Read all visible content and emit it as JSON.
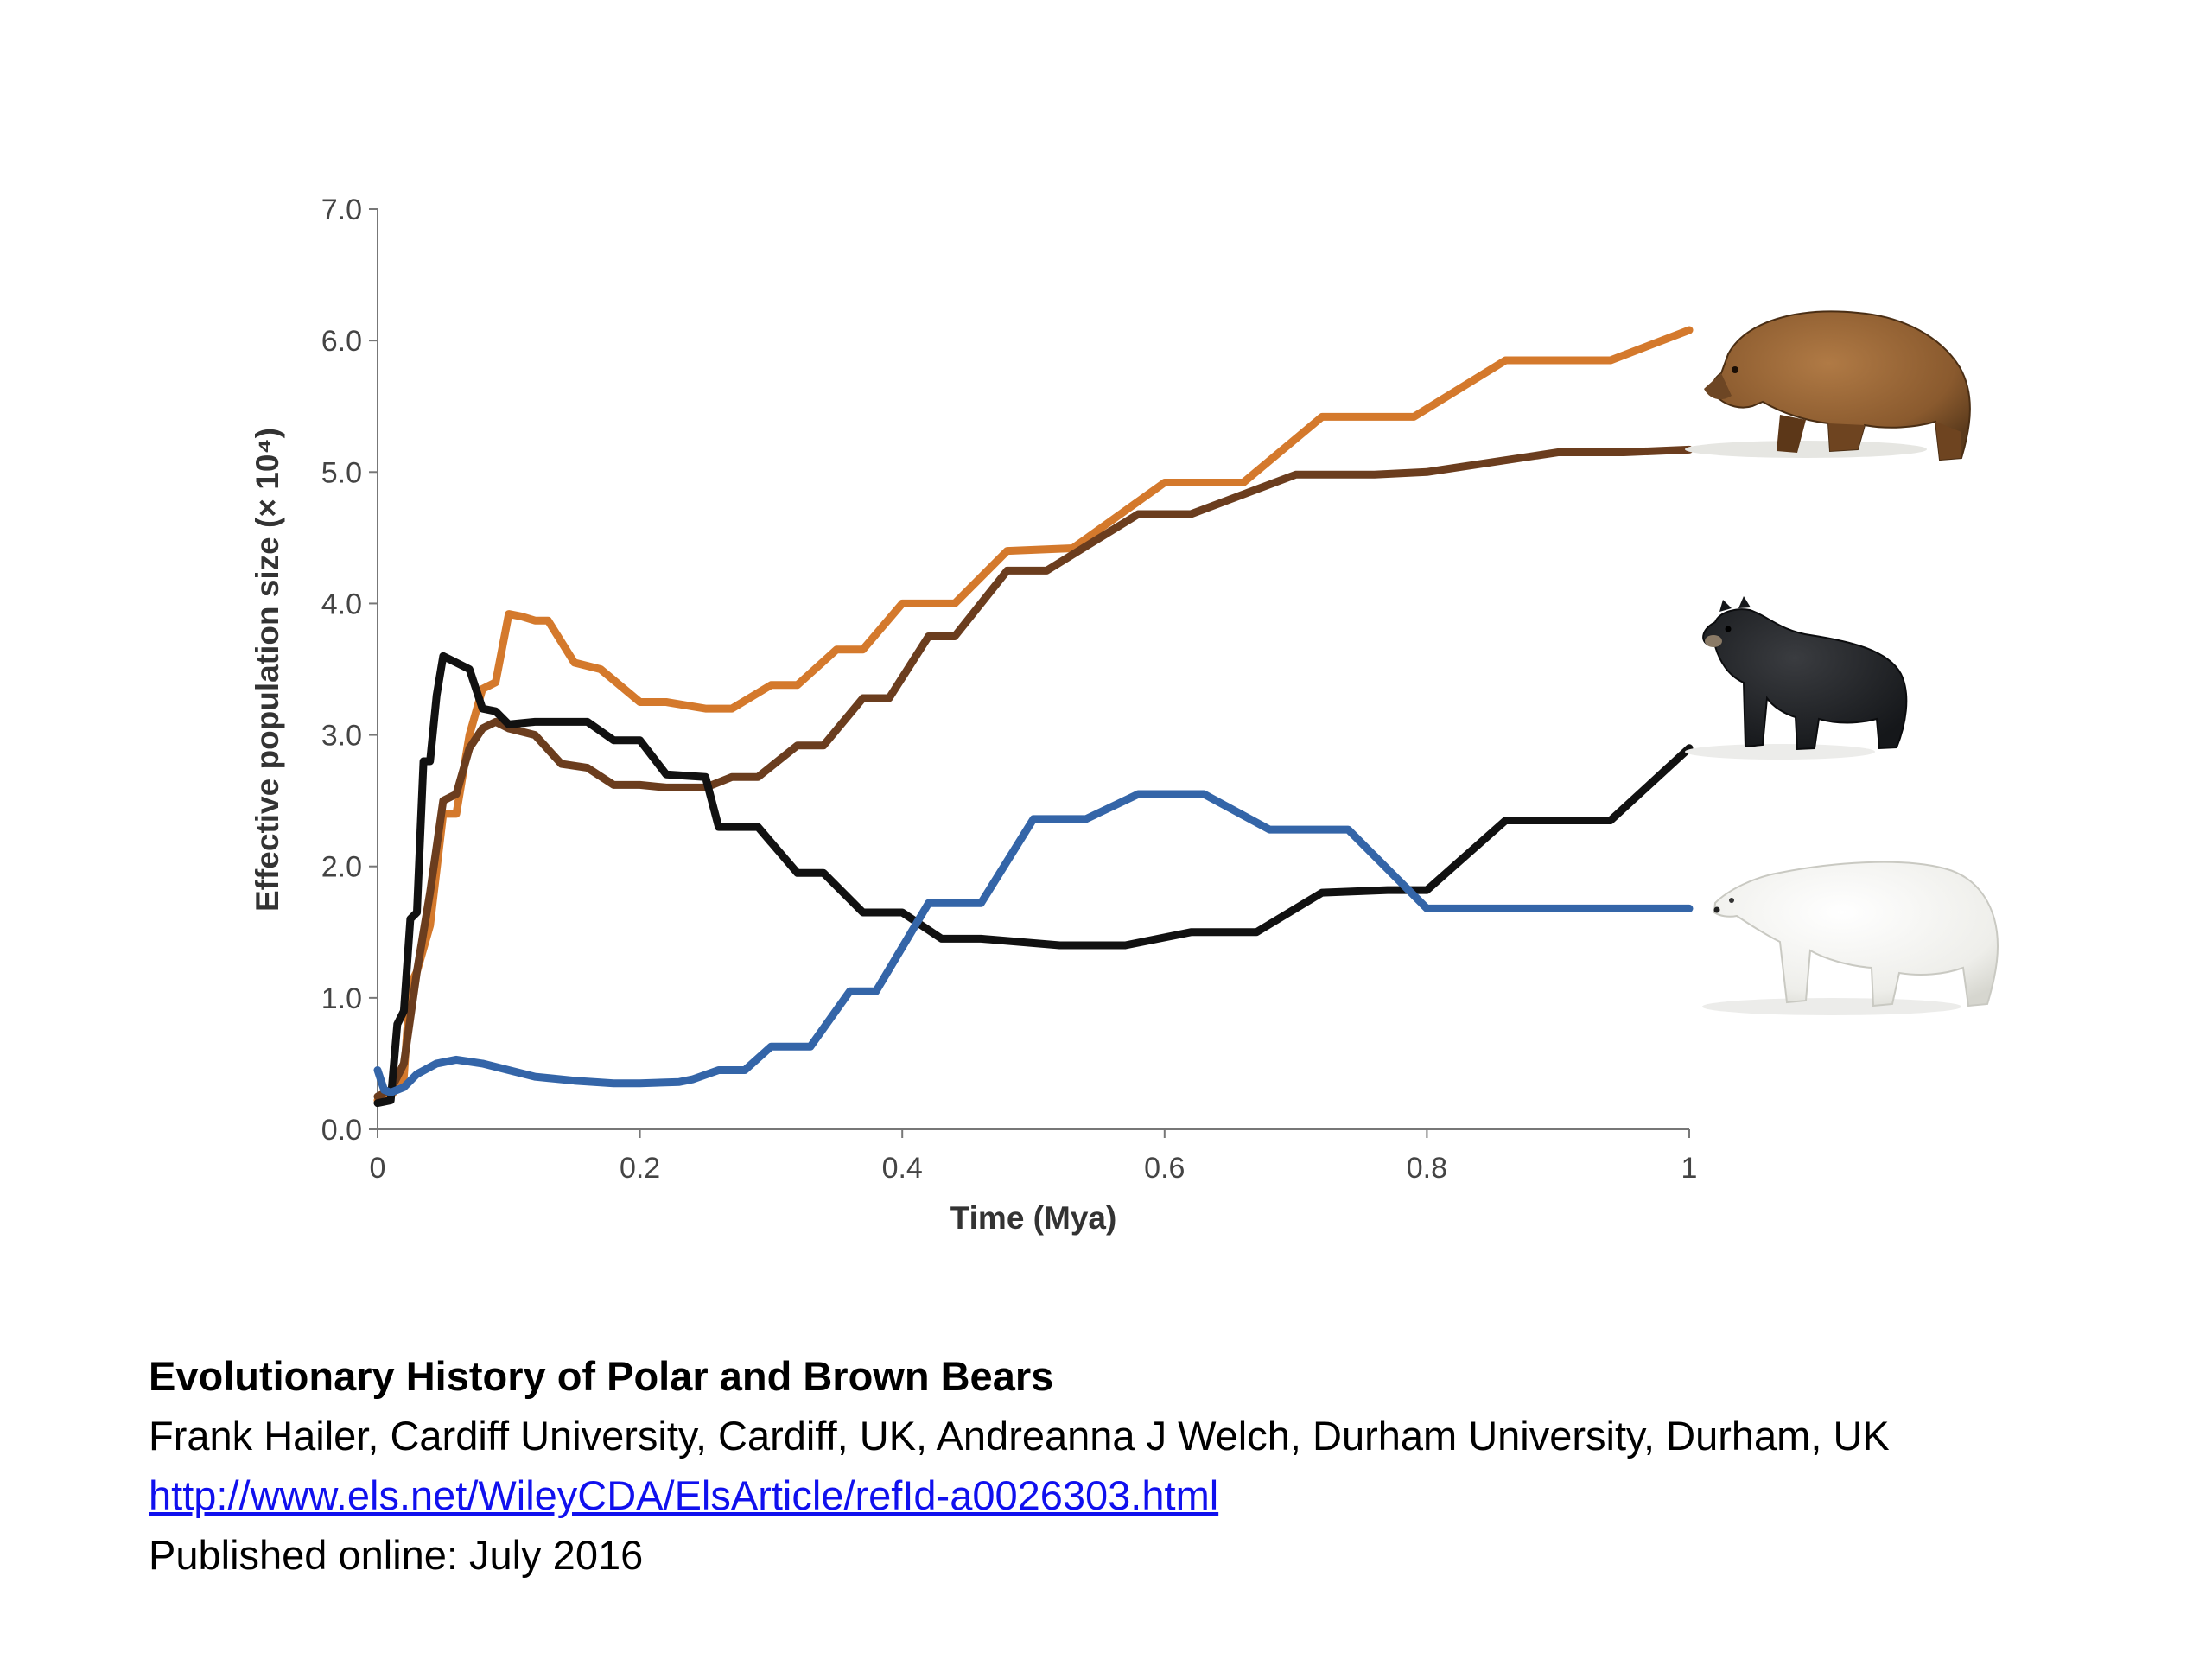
{
  "chart_data": {
    "type": "line",
    "xlabel": "Time (Mya)",
    "ylabel": "Effective population size (× 10⁴)",
    "xlim": [
      0,
      1
    ],
    "ylim": [
      0,
      7
    ],
    "x_ticks": [
      "0",
      "0.2",
      "0.4",
      "0.6",
      "0.8",
      "1"
    ],
    "y_ticks": [
      "0.0",
      "1.0",
      "2.0",
      "3.0",
      "4.0",
      "5.0",
      "6.0",
      "7.0"
    ],
    "grid": false,
    "legend": "none",
    "series": [
      {
        "color": "#d4792c",
        "points": [
          [
            0,
            0.22
          ],
          [
            0.01,
            0.25
          ],
          [
            0.02,
            0.4
          ],
          [
            0.025,
            1.1
          ],
          [
            0.03,
            1.2
          ],
          [
            0.04,
            1.55
          ],
          [
            0.05,
            2.4
          ],
          [
            0.06,
            2.4
          ],
          [
            0.07,
            3.0
          ],
          [
            0.08,
            3.35
          ],
          [
            0.09,
            3.4
          ],
          [
            0.1,
            3.92
          ],
          [
            0.11,
            3.9
          ],
          [
            0.12,
            3.87
          ],
          [
            0.13,
            3.87
          ],
          [
            0.15,
            3.55
          ],
          [
            0.17,
            3.5
          ],
          [
            0.2,
            3.25
          ],
          [
            0.22,
            3.25
          ],
          [
            0.25,
            3.2
          ],
          [
            0.27,
            3.2
          ],
          [
            0.3,
            3.38
          ],
          [
            0.32,
            3.38
          ],
          [
            0.35,
            3.65
          ],
          [
            0.37,
            3.65
          ],
          [
            0.4,
            4.0
          ],
          [
            0.44,
            4.0
          ],
          [
            0.48,
            4.4
          ],
          [
            0.53,
            4.42
          ],
          [
            0.6,
            4.92
          ],
          [
            0.66,
            4.92
          ],
          [
            0.72,
            5.42
          ],
          [
            0.79,
            5.42
          ],
          [
            0.86,
            5.85
          ],
          [
            0.94,
            5.85
          ],
          [
            1.0,
            6.08
          ]
        ]
      },
      {
        "color": "#6b3d1e",
        "points": [
          [
            0,
            0.25
          ],
          [
            0.01,
            0.3
          ],
          [
            0.02,
            0.5
          ],
          [
            0.03,
            1.2
          ],
          [
            0.04,
            1.8
          ],
          [
            0.05,
            2.5
          ],
          [
            0.06,
            2.55
          ],
          [
            0.07,
            2.9
          ],
          [
            0.08,
            3.05
          ],
          [
            0.09,
            3.1
          ],
          [
            0.1,
            3.05
          ],
          [
            0.12,
            3.0
          ],
          [
            0.14,
            2.78
          ],
          [
            0.16,
            2.75
          ],
          [
            0.18,
            2.62
          ],
          [
            0.2,
            2.62
          ],
          [
            0.22,
            2.6
          ],
          [
            0.25,
            2.6
          ],
          [
            0.27,
            2.68
          ],
          [
            0.29,
            2.68
          ],
          [
            0.32,
            2.92
          ],
          [
            0.34,
            2.92
          ],
          [
            0.37,
            3.28
          ],
          [
            0.39,
            3.28
          ],
          [
            0.42,
            3.75
          ],
          [
            0.44,
            3.75
          ],
          [
            0.48,
            4.25
          ],
          [
            0.51,
            4.25
          ],
          [
            0.58,
            4.68
          ],
          [
            0.62,
            4.68
          ],
          [
            0.7,
            4.98
          ],
          [
            0.76,
            4.98
          ],
          [
            0.8,
            5.0
          ],
          [
            0.9,
            5.15
          ],
          [
            0.95,
            5.15
          ],
          [
            1.0,
            5.17
          ]
        ]
      },
      {
        "color": "#111111",
        "points": [
          [
            0,
            0.2
          ],
          [
            0.01,
            0.22
          ],
          [
            0.015,
            0.8
          ],
          [
            0.02,
            0.9
          ],
          [
            0.025,
            1.6
          ],
          [
            0.03,
            1.65
          ],
          [
            0.035,
            2.8
          ],
          [
            0.04,
            2.8
          ],
          [
            0.045,
            3.3
          ],
          [
            0.05,
            3.6
          ],
          [
            0.06,
            3.55
          ],
          [
            0.07,
            3.5
          ],
          [
            0.08,
            3.2
          ],
          [
            0.09,
            3.18
          ],
          [
            0.1,
            3.08
          ],
          [
            0.12,
            3.1
          ],
          [
            0.14,
            3.1
          ],
          [
            0.16,
            3.1
          ],
          [
            0.18,
            2.96
          ],
          [
            0.2,
            2.96
          ],
          [
            0.22,
            2.7
          ],
          [
            0.25,
            2.68
          ],
          [
            0.26,
            2.3
          ],
          [
            0.29,
            2.3
          ],
          [
            0.32,
            1.95
          ],
          [
            0.34,
            1.95
          ],
          [
            0.37,
            1.65
          ],
          [
            0.4,
            1.65
          ],
          [
            0.43,
            1.45
          ],
          [
            0.46,
            1.45
          ],
          [
            0.52,
            1.4
          ],
          [
            0.57,
            1.4
          ],
          [
            0.62,
            1.5
          ],
          [
            0.67,
            1.5
          ],
          [
            0.72,
            1.8
          ],
          [
            0.77,
            1.82
          ],
          [
            0.8,
            1.82
          ],
          [
            0.86,
            2.35
          ],
          [
            0.94,
            2.35
          ],
          [
            1.0,
            2.9
          ]
        ]
      },
      {
        "color": "#3465a8",
        "points": [
          [
            0,
            0.45
          ],
          [
            0.005,
            0.3
          ],
          [
            0.01,
            0.28
          ],
          [
            0.02,
            0.32
          ],
          [
            0.03,
            0.42
          ],
          [
            0.045,
            0.5
          ],
          [
            0.06,
            0.53
          ],
          [
            0.08,
            0.5
          ],
          [
            0.1,
            0.45
          ],
          [
            0.12,
            0.4
          ],
          [
            0.15,
            0.37
          ],
          [
            0.18,
            0.35
          ],
          [
            0.2,
            0.35
          ],
          [
            0.23,
            0.36
          ],
          [
            0.24,
            0.38
          ],
          [
            0.26,
            0.45
          ],
          [
            0.28,
            0.45
          ],
          [
            0.3,
            0.63
          ],
          [
            0.33,
            0.63
          ],
          [
            0.36,
            1.05
          ],
          [
            0.38,
            1.05
          ],
          [
            0.42,
            1.72
          ],
          [
            0.46,
            1.72
          ],
          [
            0.5,
            2.36
          ],
          [
            0.54,
            2.36
          ],
          [
            0.58,
            2.55
          ],
          [
            0.63,
            2.55
          ],
          [
            0.68,
            2.28
          ],
          [
            0.74,
            2.28
          ],
          [
            0.8,
            1.68
          ],
          [
            0.9,
            1.68
          ],
          [
            1.0,
            1.68
          ]
        ]
      }
    ]
  },
  "caption": {
    "title": "Evolutionary History of Polar and Brown Bears",
    "authors": "Frank Hailer, Cardiff University, Cardiff, UK, Andreanna J Welch, Durham University, Durham, UK",
    "url": "http://www.els.net/WileyCDA/ElsArticle/refId-a0026303.html",
    "published": "Published online: July 2016"
  },
  "images": {
    "brown_bear": "brown-bear-illustration",
    "black_bear": "american-black-bear-illustration",
    "polar_bear": "polar-bear-illustration"
  }
}
